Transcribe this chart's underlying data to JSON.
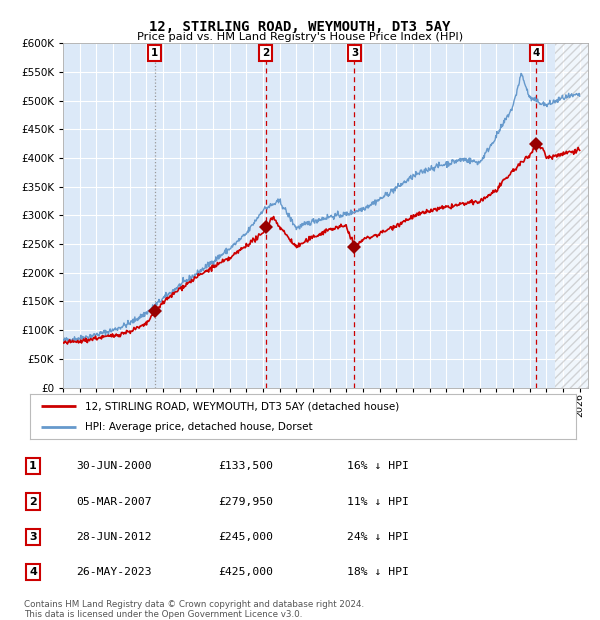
{
  "title": "12, STIRLING ROAD, WEYMOUTH, DT3 5AY",
  "subtitle": "Price paid vs. HM Land Registry's House Price Index (HPI)",
  "ylim": [
    0,
    600000
  ],
  "yticks": [
    0,
    50000,
    100000,
    150000,
    200000,
    250000,
    300000,
    350000,
    400000,
    450000,
    500000,
    550000,
    600000
  ],
  "xlim_start": 1995.0,
  "xlim_end": 2026.5,
  "xticks": [
    1995,
    1996,
    1997,
    1998,
    1999,
    2000,
    2001,
    2002,
    2003,
    2004,
    2005,
    2006,
    2007,
    2008,
    2009,
    2010,
    2011,
    2012,
    2013,
    2014,
    2015,
    2016,
    2017,
    2018,
    2019,
    2020,
    2021,
    2022,
    2023,
    2024,
    2025,
    2026
  ],
  "background_color": "#dce9f8",
  "hpi_color": "#6699cc",
  "price_color": "#cc0000",
  "sale_marker_color": "#990000",
  "vline_color": "#cc0000",
  "vline1_color": "#999999",
  "transactions": [
    {
      "date": 2000.5,
      "price": 133500,
      "label": "1",
      "vline_style": "dotted"
    },
    {
      "date": 2007.17,
      "price": 279950,
      "label": "2",
      "vline_style": "dashed"
    },
    {
      "date": 2012.49,
      "price": 245000,
      "label": "3",
      "vline_style": "dashed"
    },
    {
      "date": 2023.4,
      "price": 425000,
      "label": "4",
      "vline_style": "dashed"
    }
  ],
  "table_rows": [
    [
      "1",
      "30-JUN-2000",
      "£133,500",
      "16% ↓ HPI"
    ],
    [
      "2",
      "05-MAR-2007",
      "£279,950",
      "11% ↓ HPI"
    ],
    [
      "3",
      "28-JUN-2012",
      "£245,000",
      "24% ↓ HPI"
    ],
    [
      "4",
      "26-MAY-2023",
      "£425,000",
      "18% ↓ HPI"
    ]
  ],
  "legend_label_price": "12, STIRLING ROAD, WEYMOUTH, DT3 5AY (detached house)",
  "legend_label_hpi": "HPI: Average price, detached house, Dorset",
  "footer_text": "Contains HM Land Registry data © Crown copyright and database right 2024.\nThis data is licensed under the Open Government Licence v3.0.",
  "future_start": 2024.5,
  "hpi_anchors_x": [
    1995,
    1996,
    1997,
    1998,
    1999,
    2000,
    2001,
    2002,
    2003,
    2004,
    2005,
    2006,
    2007,
    2008,
    2009,
    2010,
    2011,
    2012,
    2013,
    2014,
    2015,
    2016,
    2017,
    2018,
    2019,
    2020,
    2021,
    2022,
    2022.5,
    2023,
    2024,
    2025,
    2026
  ],
  "hpi_anchors_y": [
    82000,
    86000,
    92000,
    100000,
    112000,
    130000,
    155000,
    178000,
    198000,
    220000,
    242000,
    268000,
    310000,
    325000,
    278000,
    290000,
    298000,
    302000,
    312000,
    328000,
    348000,
    368000,
    382000,
    390000,
    398000,
    392000,
    438000,
    490000,
    548000,
    505000,
    492000,
    505000,
    510000
  ],
  "price_anchors_x": [
    1995,
    1996,
    1997,
    1998,
    1999,
    2000,
    2000.5,
    2001,
    2002,
    2003,
    2004,
    2005,
    2006,
    2007,
    2007.2,
    2007.6,
    2008,
    2009,
    2010,
    2011,
    2012,
    2012.5,
    2013,
    2014,
    2015,
    2016,
    2017,
    2018,
    2019,
    2020,
    2021,
    2022,
    2023,
    2023.4,
    2023.9,
    2024,
    2025,
    2026
  ],
  "price_anchors_y": [
    78000,
    80000,
    86000,
    90000,
    98000,
    110000,
    133500,
    148000,
    172000,
    192000,
    210000,
    225000,
    248000,
    268000,
    279950,
    298000,
    280000,
    245000,
    262000,
    276000,
    282000,
    245000,
    258000,
    268000,
    283000,
    298000,
    308000,
    314000,
    320000,
    324000,
    344000,
    378000,
    405000,
    425000,
    412000,
    400000,
    408000,
    415000
  ]
}
